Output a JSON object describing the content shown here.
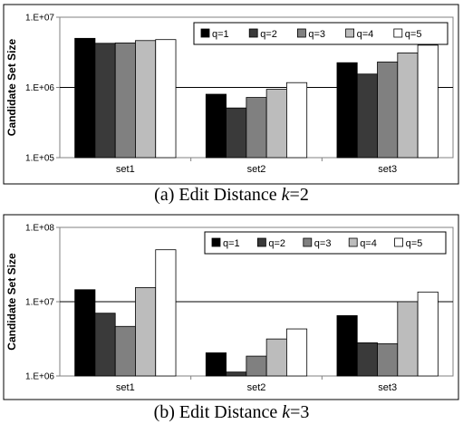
{
  "colors": [
    "#000000",
    "#3a3a3a",
    "#808080",
    "#bcbcbc",
    "#ffffff"
  ],
  "chart_data": [
    {
      "type": "bar",
      "yscale": "log",
      "ylabel": "Candidate Set Size",
      "yticks": [
        "1.E+05",
        "1.E+06",
        "1.E+07"
      ],
      "ylim": [
        100000,
        10000000
      ],
      "grid": "horizontal",
      "legend": "top-right",
      "categories": [
        "set1",
        "set2",
        "set3"
      ],
      "series": [
        {
          "name": "q=1",
          "values": [
            5000000,
            800000,
            2250000
          ]
        },
        {
          "name": "q=2",
          "values": [
            4250000,
            510000,
            1550000
          ]
        },
        {
          "name": "q=3",
          "values": [
            4300000,
            720000,
            2300000
          ]
        },
        {
          "name": "q=4",
          "values": [
            4650000,
            940000,
            3100000
          ]
        },
        {
          "name": "q=5",
          "values": [
            4800000,
            1170000,
            4000000
          ]
        }
      ],
      "caption_prefix": "(a) Edit Distance ",
      "caption_var": "k",
      "caption_suffix": "=2"
    },
    {
      "type": "bar",
      "yscale": "log",
      "ylabel": "Candidate Set Size",
      "yticks": [
        "1.E+06",
        "1.E+07",
        "1.E+08"
      ],
      "ylim": [
        1000000,
        100000000
      ],
      "grid": "horizontal",
      "legend": "top",
      "categories": [
        "set1",
        "set2",
        "set3"
      ],
      "series": [
        {
          "name": "q=1",
          "values": [
            14500000,
            2050000,
            6500000
          ]
        },
        {
          "name": "q=2",
          "values": [
            7000000,
            1130000,
            2800000
          ]
        },
        {
          "name": "q=3",
          "values": [
            4650000,
            1850000,
            2720000
          ]
        },
        {
          "name": "q=4",
          "values": [
            15500000,
            3150000,
            10000000
          ]
        },
        {
          "name": "q=5",
          "values": [
            50000000,
            4300000,
            13500000
          ]
        }
      ],
      "caption_prefix": "(b) Edit Distance ",
      "caption_var": "k",
      "caption_suffix": "=3"
    }
  ]
}
